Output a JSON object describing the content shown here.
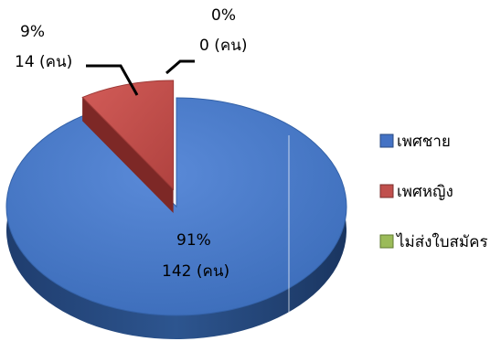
{
  "chart_data": {
    "type": "pie",
    "style": "3d-exploded",
    "categories": [
      "เพศชาย",
      "เพศหญิง",
      "ไม่ส่งใบสมัคร"
    ],
    "values": [
      142,
      14,
      0
    ],
    "percent_labels": [
      "91%",
      "9%",
      "0%"
    ],
    "count_labels": [
      "142 (คน)",
      "14 (คน)",
      "0 (คน)"
    ],
    "colors": [
      "#4472C4",
      "#C0504D",
      "#9BBB59"
    ],
    "legend_position": "right"
  }
}
